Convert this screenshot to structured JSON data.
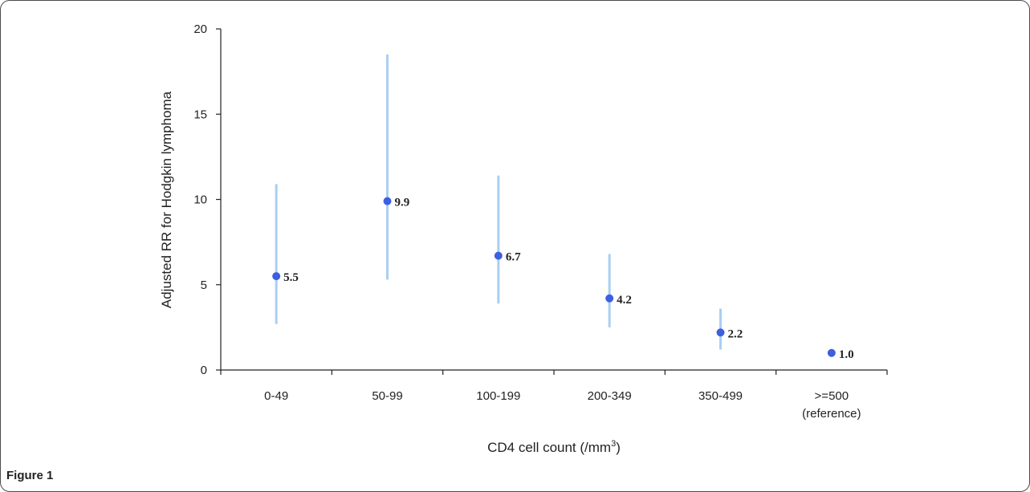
{
  "caption": "Figure 1",
  "chart_data": {
    "type": "scatter",
    "categories": [
      [
        "0-49"
      ],
      [
        "50-99"
      ],
      [
        "100-199"
      ],
      [
        "200-349"
      ],
      [
        "350-499"
      ],
      [
        ">=500",
        "(reference)"
      ]
    ],
    "values": [
      5.5,
      9.9,
      6.7,
      4.2,
      2.2,
      1.0
    ],
    "value_labels": [
      "5.5",
      "9.9",
      "6.7",
      "4.2",
      "2.2",
      "1.0"
    ],
    "ci_lower": [
      2.7,
      5.3,
      3.9,
      2.5,
      1.2,
      null
    ],
    "ci_upper": [
      10.9,
      18.5,
      11.4,
      6.8,
      3.6,
      null
    ],
    "ylim": [
      0,
      20
    ],
    "yticks": [
      0,
      5,
      10,
      15,
      20
    ],
    "ylabel": "Adjusted RR for Hodgkin lymphoma",
    "xlabel": "CD4 cell count (/mm",
    "xlabel_superscript": "3",
    "xlabel_suffix": ")",
    "grid": false,
    "colors": {
      "point": "#3d5fe0",
      "interval": "#a9cff2",
      "axis": "#222222"
    }
  }
}
